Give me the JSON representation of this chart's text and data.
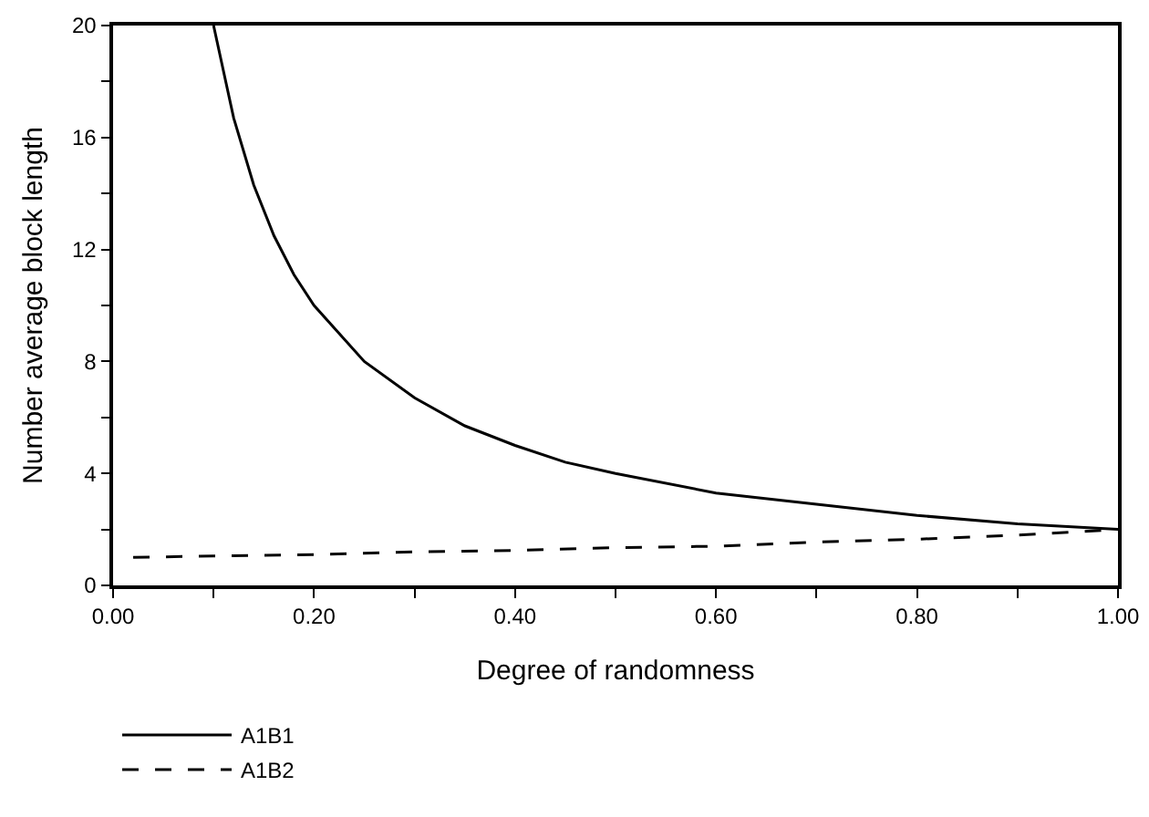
{
  "chart_data": {
    "type": "line",
    "xlabel": "Degree of randomness",
    "ylabel": "Number average block length",
    "xlim": [
      0,
      1
    ],
    "ylim": [
      0,
      20
    ],
    "xticks": [
      {
        "value": 0,
        "label": "0.00"
      },
      {
        "value": 0.1,
        "label": null
      },
      {
        "value": 0.2,
        "label": "0.20"
      },
      {
        "value": 0.3,
        "label": null
      },
      {
        "value": 0.4,
        "label": "0.40"
      },
      {
        "value": 0.5,
        "label": null
      },
      {
        "value": 0.6,
        "label": "0.60"
      },
      {
        "value": 0.7,
        "label": null
      },
      {
        "value": 0.8,
        "label": "0.80"
      },
      {
        "value": 0.9,
        "label": null
      },
      {
        "value": 1,
        "label": "1.00"
      }
    ],
    "yticks": [
      0,
      {
        "value": 2,
        "label": null
      },
      4,
      {
        "value": 6,
        "label": null
      },
      8,
      {
        "value": 10,
        "label": null
      },
      12,
      {
        "value": 14,
        "label": null
      },
      16,
      {
        "value": 18,
        "label": null
      },
      20
    ],
    "grid": false,
    "legend": "bottom",
    "marker": "none",
    "series": [
      {
        "name": "A1B1",
        "color": "#000000",
        "line_style": "solid",
        "x": [
          0.1,
          0.12,
          0.14,
          0.16,
          0.18,
          0.2,
          0.25,
          0.3,
          0.35,
          0.4,
          0.45,
          0.5,
          0.6,
          0.7,
          0.8,
          0.9,
          1.0
        ],
        "values": [
          20,
          16.7,
          14.3,
          12.5,
          11.1,
          10,
          8,
          6.7,
          5.7,
          5,
          4.4,
          4,
          3.3,
          2.9,
          2.5,
          2.2,
          2
        ]
      },
      {
        "name": "A1B2",
        "color": "#000000",
        "line_style": "dashed",
        "x": [
          0.02,
          0.1,
          0.2,
          0.3,
          0.4,
          0.5,
          0.6,
          0.7,
          0.8,
          0.9,
          1.0
        ],
        "values": [
          1.0,
          1.05,
          1.1,
          1.2,
          1.25,
          1.35,
          1.4,
          1.55,
          1.65,
          1.8,
          2.0
        ]
      }
    ]
  }
}
